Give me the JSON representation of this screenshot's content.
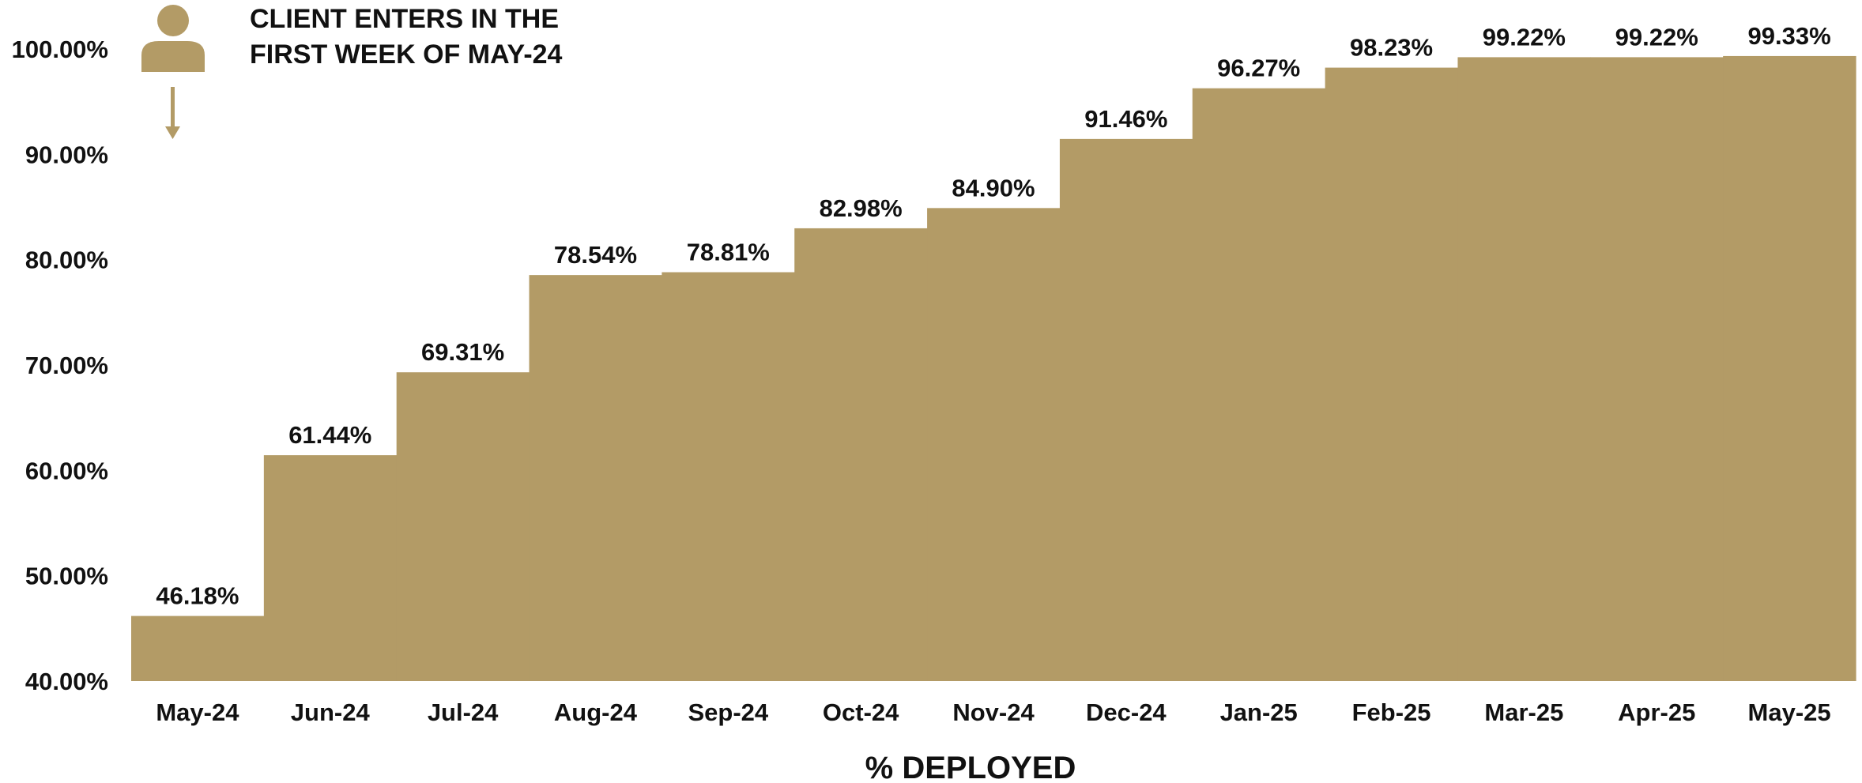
{
  "colors": {
    "bar_fill": "#b39b66",
    "icon": "#b39b66",
    "text": "#111111"
  },
  "annotation": {
    "icon": "person-icon",
    "arrow_icon": "arrow-down-icon",
    "line1": "CLIENT ENTERS IN THE",
    "line2": "FIRST WEEK OF MAY-24"
  },
  "chart_data": {
    "type": "area",
    "style": "step",
    "title": "",
    "xlabel": "% DEPLOYED",
    "ylabel": "",
    "ylim": [
      40,
      100
    ],
    "yticks": [
      40,
      50,
      60,
      70,
      80,
      90,
      100
    ],
    "ytick_labels": [
      "40.00%",
      "50.00%",
      "60.00%",
      "70.00%",
      "80.00%",
      "90.00%",
      "100.00%"
    ],
    "grid": false,
    "legend": "none",
    "categories": [
      "May-24",
      "Jun-24",
      "Jul-24",
      "Aug-24",
      "Sep-24",
      "Oct-24",
      "Nov-24",
      "Dec-24",
      "Jan-25",
      "Feb-25",
      "Mar-25",
      "Apr-25",
      "May-25"
    ],
    "values": [
      46.18,
      61.44,
      69.31,
      78.54,
      78.81,
      82.98,
      84.9,
      91.46,
      96.27,
      98.23,
      99.22,
      99.22,
      99.33
    ],
    "value_labels": [
      "46.18%",
      "61.44%",
      "69.31%",
      "78.54%",
      "78.81%",
      "82.98%",
      "84.90%",
      "91.46%",
      "96.27%",
      "98.23%",
      "99.22%",
      "99.22%",
      "99.33%"
    ]
  }
}
